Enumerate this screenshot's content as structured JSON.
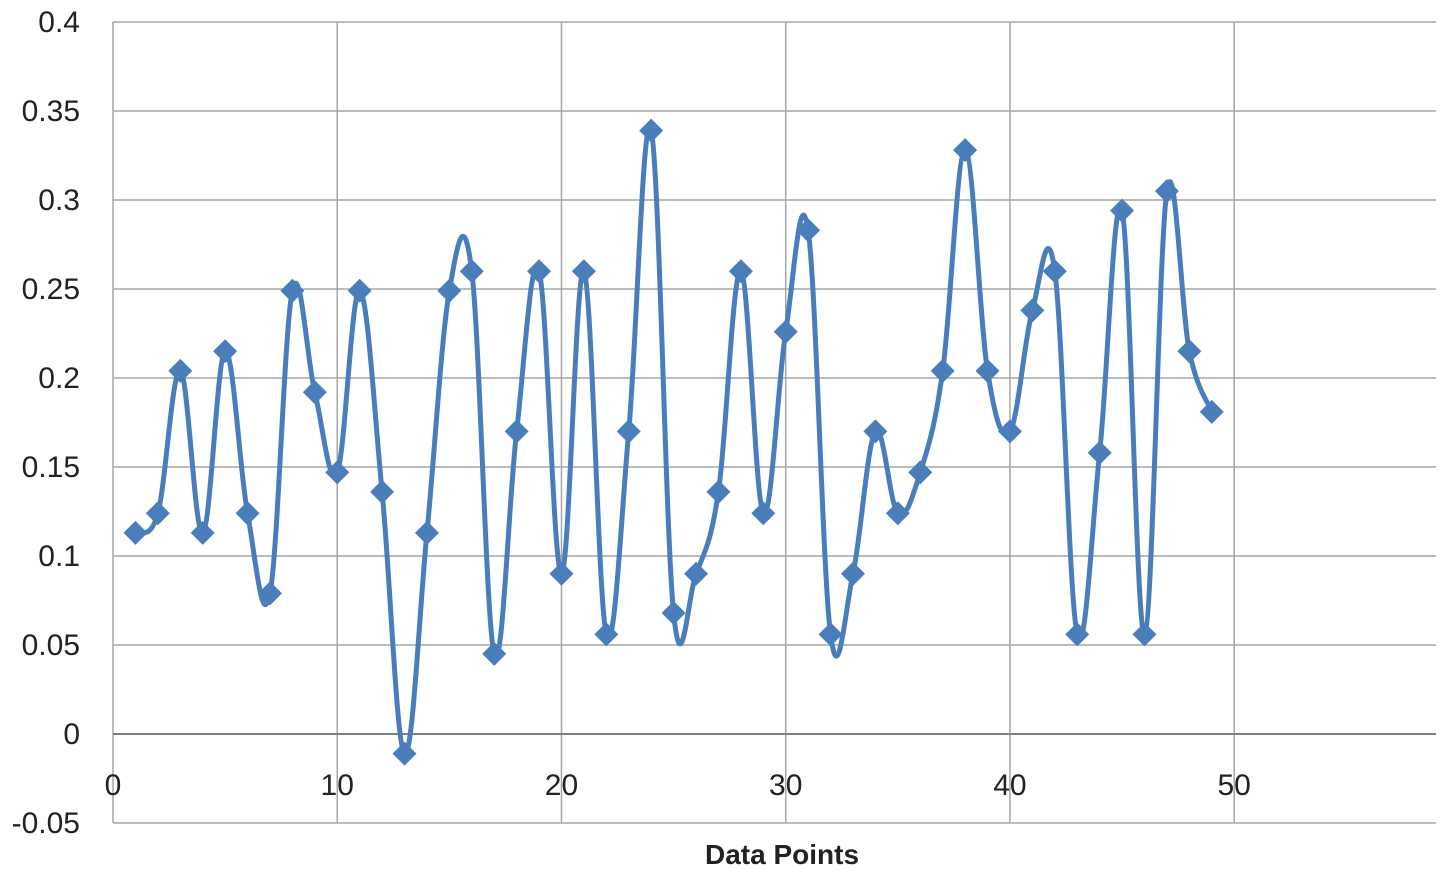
{
  "chart_data": {
    "type": "line",
    "title": "",
    "xlabel": "Data Points",
    "ylabel": "",
    "xlim": [
      0,
      59
    ],
    "ylim": [
      -0.05,
      0.4
    ],
    "x_ticks": [
      0,
      10,
      20,
      30,
      40,
      50
    ],
    "y_ticks": [
      -0.05,
      0,
      0.05,
      0.1,
      0.15,
      0.2,
      0.25,
      0.3,
      0.35,
      0.4
    ],
    "x_tick_labels": [
      "0",
      "10",
      "20",
      "30",
      "40",
      "50"
    ],
    "y_tick_labels": [
      "-0.05",
      "0",
      "0.05",
      "0.1",
      "0.15",
      "0.2",
      "0.25",
      "0.3",
      "0.35",
      "0.4"
    ],
    "grid": true,
    "marker": "diamond",
    "color": "#4a7ebb",
    "series": [
      {
        "x": [
          1,
          2,
          3,
          4,
          5,
          6,
          7,
          8,
          9,
          10,
          11,
          12,
          13,
          14,
          15,
          16,
          17,
          18,
          19,
          20,
          21,
          22,
          23,
          24,
          25,
          26,
          27,
          28,
          29,
          30,
          31,
          32,
          33,
          34,
          35,
          36,
          37,
          38,
          39,
          40,
          41,
          42,
          43,
          44,
          45,
          46,
          47,
          48,
          49
        ],
        "values": [
          0.113,
          0.124,
          0.204,
          0.113,
          0.215,
          0.124,
          0.079,
          0.249,
          0.192,
          0.147,
          0.249,
          0.136,
          -0.011,
          0.113,
          0.249,
          0.26,
          0.045,
          0.17,
          0.26,
          0.09,
          0.26,
          0.056,
          0.17,
          0.339,
          0.068,
          0.09,
          0.136,
          0.26,
          0.124,
          0.226,
          0.283,
          0.056,
          0.09,
          0.17,
          0.124,
          0.147,
          0.204,
          0.328,
          0.204,
          0.17,
          0.238,
          0.26,
          0.056,
          0.158,
          0.294,
          0.056,
          0.305,
          0.215,
          0.181
        ]
      }
    ]
  }
}
